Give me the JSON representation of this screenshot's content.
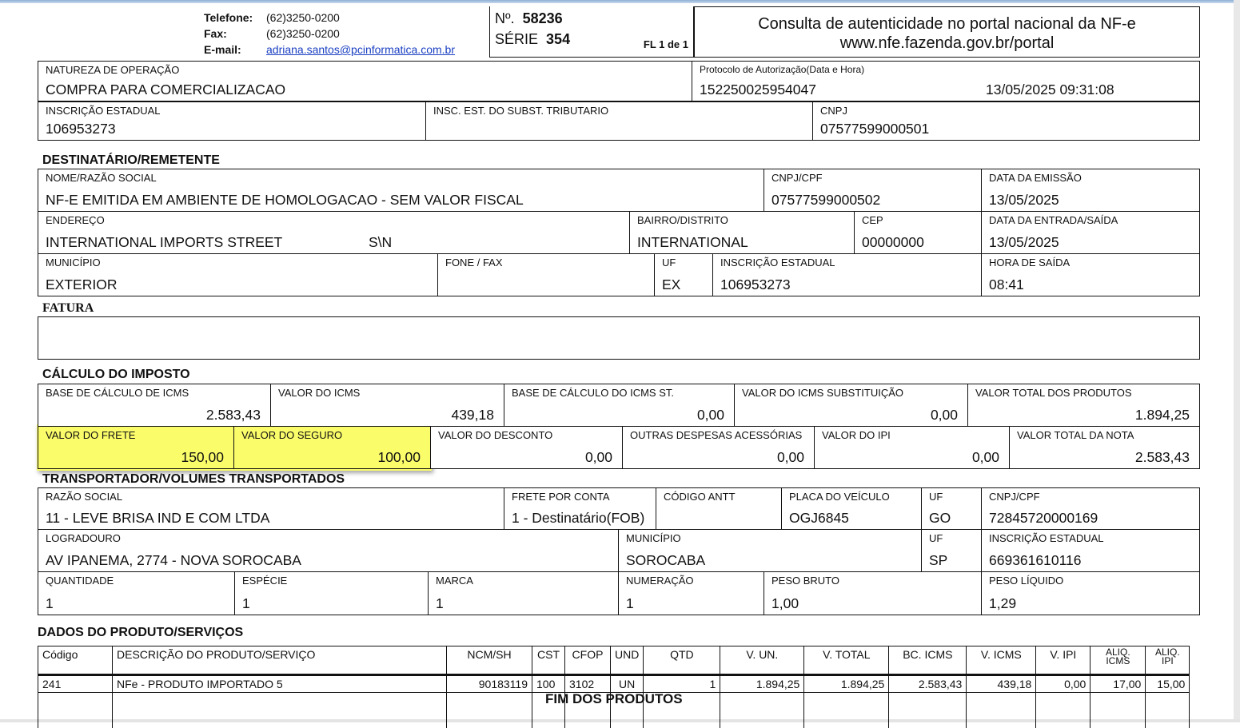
{
  "header": {
    "telefone_label": "Telefone:",
    "telefone": "(62)3250-0200",
    "fax_label": "Fax:",
    "fax": "(62)3250-0200",
    "email_label": "E-mail:",
    "email": "adriana.santos@pcinformatica.com.br",
    "numero_label": "Nº.",
    "numero": "58236",
    "serie_label": "SÉRIE",
    "serie": "354",
    "folha": "FL  1 de 1",
    "consulta_line1": "Consulta de autenticidade no portal nacional da NF-e",
    "consulta_line2": "www.nfe.fazenda.gov.br/portal"
  },
  "emitente": {
    "natureza": {
      "label": "NATUREZA DE OPERAÇÃO",
      "value": "COMPRA PARA COMERCIALIZACAO"
    },
    "protocolo": {
      "label": "Protocolo de Autorização(Data e Hora)",
      "value": "152250025954047",
      "datetime": "13/05/2025 09:31:08"
    },
    "ie": {
      "label": "INSCRIÇÃO ESTADUAL",
      "value": "106953273"
    },
    "ie_st": {
      "label": "INSC. EST. DO SUBST. TRIBUTARIO",
      "value": ""
    },
    "cnpj": {
      "label": "CNPJ",
      "value": "07577599000501"
    }
  },
  "destinatario": {
    "title": "DESTINATÁRIO/REMETENTE",
    "nome": {
      "label": "NOME/RAZÃO SOCIAL",
      "value": "NF-E EMITIDA EM AMBIENTE DE HOMOLOGACAO - SEM VALOR FISCAL"
    },
    "cnpj": {
      "label": "CNPJ/CPF",
      "value": "07577599000502"
    },
    "emissao": {
      "label": "DATA DA EMISSÃO",
      "value": "13/05/2025"
    },
    "endereco": {
      "label": "ENDEREÇO",
      "value": "INTERNATIONAL IMPORTS STREET",
      "numero": "S\\N"
    },
    "bairro": {
      "label": "BAIRRO/DISTRITO",
      "value": "INTERNATIONAL"
    },
    "cep": {
      "label": "CEP",
      "value": "00000000"
    },
    "entrada": {
      "label": "DATA DA ENTRADA/SAÍDA",
      "value": "13/05/2025"
    },
    "municipio": {
      "label": "MUNICÍPIO",
      "value": "EXTERIOR"
    },
    "fone": {
      "label": "FONE / FAX",
      "value": ""
    },
    "uf": {
      "label": "UF",
      "value": "EX"
    },
    "ie": {
      "label": "INSCRIÇÃO ESTADUAL",
      "value": "106953273"
    },
    "hora": {
      "label": "HORA DE SAÍDA",
      "value": "08:41"
    }
  },
  "fatura": {
    "title": "FATURA"
  },
  "imposto": {
    "title": "CÁLCULO DO IMPOSTO",
    "bc_icms": {
      "label": "BASE DE CÁLCULO DE ICMS",
      "value": "2.583,43"
    },
    "v_icms": {
      "label": "VALOR DO ICMS",
      "value": "439,18"
    },
    "bc_st": {
      "label": "BASE DE CÁLCULO DO ICMS ST.",
      "value": "0,00"
    },
    "v_st": {
      "label": "VALOR DO ICMS SUBSTITUIÇÃO",
      "value": "0,00"
    },
    "v_prod": {
      "label": "VALOR TOTAL DOS PRODUTOS",
      "value": "1.894,25"
    },
    "frete": {
      "label": "VALOR DO FRETE",
      "value": "150,00"
    },
    "seguro": {
      "label": "VALOR DO SEGURO",
      "value": "100,00"
    },
    "desconto": {
      "label": "VALOR DO DESCONTO",
      "value": "0,00"
    },
    "outras": {
      "label": "OUTRAS DESPESAS ACESSÓRIAS",
      "value": "0,00"
    },
    "ipi": {
      "label": "VALOR DO IPI",
      "value": "0,00"
    },
    "v_nota": {
      "label": "VALOR TOTAL DA NOTA",
      "value": "2.583,43"
    },
    "highlight_color": "#fbfc6a"
  },
  "transportador": {
    "title": "TRANSPORTADOR/VOLUMES TRANSPORTADOS",
    "razao": {
      "label": "RAZÃO SOCIAL",
      "value": "11 - LEVE BRISA IND E COM LTDA"
    },
    "frete_conta": {
      "label": "FRETE POR CONTA",
      "value": "1 - Destinatário(FOB)"
    },
    "antt": {
      "label": "CÓDIGO ANTT",
      "value": ""
    },
    "placa": {
      "label": "PLACA DO VEÍCULO",
      "value": "OGJ6845"
    },
    "uf1": {
      "label": "UF",
      "value": "GO"
    },
    "cnpj": {
      "label": "CNPJ/CPF",
      "value": "72845720000169"
    },
    "logradouro": {
      "label": "LOGRADOURO",
      "value": "AV IPANEMA, 2774 - NOVA SOROCABA"
    },
    "municipio": {
      "label": "MUNICÍPIO",
      "value": "SOROCABA"
    },
    "uf2": {
      "label": "UF",
      "value": "SP"
    },
    "ie": {
      "label": "INSCRIÇÃO ESTADUAL",
      "value": "669361610116"
    },
    "quantidade": {
      "label": "QUANTIDADE",
      "value": "1"
    },
    "especie": {
      "label": "ESPÉCIE",
      "value": "1"
    },
    "marca": {
      "label": "MARCA",
      "value": "1"
    },
    "numeracao": {
      "label": "NUMERAÇÃO",
      "value": "1"
    },
    "peso_bruto": {
      "label": "PESO BRUTO",
      "value": "1,00"
    },
    "peso_liquido": {
      "label": "PESO LÍQUIDO",
      "value": "1,29"
    }
  },
  "produtos": {
    "title": "DADOS DO PRODUTO/SERVIÇOS",
    "columns": [
      "Código",
      "DESCRIÇÃO DO PRODUTO/SERVIÇO",
      "NCM/SH",
      "CST",
      "CFOP",
      "UND",
      "QTD",
      "V. UN.",
      "V. TOTAL",
      "BC. ICMS",
      "V. ICMS",
      "V. IPI",
      "ALIQ. ICMS",
      "ALIQ. IPI"
    ],
    "rows": [
      [
        "241",
        "NFe - PRODUTO IMPORTADO 5",
        "90183119",
        "100",
        "3102",
        "UN",
        "1",
        "1.894,25",
        "1.894,25",
        "2.583,43",
        "439,18",
        "0,00",
        "17,00",
        "15,00"
      ]
    ],
    "footer": "FIM DOS PRODUTOS"
  }
}
